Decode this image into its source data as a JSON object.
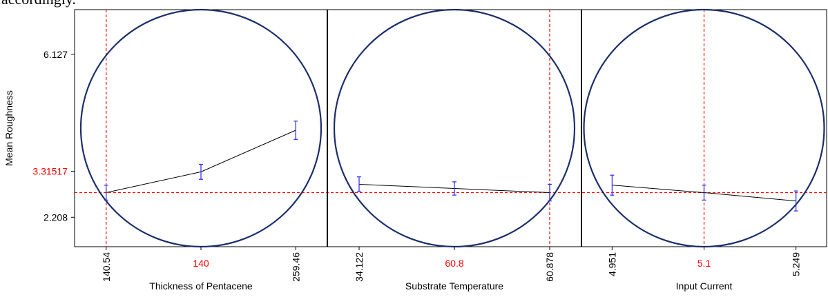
{
  "caption": "accordingly.",
  "chart_data": {
    "type": "line",
    "ylabel": "Mean Roughness",
    "ylim": [
      1.5,
      7.2
    ],
    "y_ticks": [
      "6.127",
      "3.31517",
      "2.208"
    ],
    "y_tick_values": [
      6.127,
      3.31517,
      2.208
    ],
    "y_highlight_label": "3.31517",
    "reference_y": 2.8,
    "highlight_color": "#ff0000",
    "circle_color": "#1a2e6b",
    "errorbar_color": "#3333ff",
    "line_color": "#000000",
    "grid": false,
    "panels": [
      {
        "xlabel": "Thickness of Pentacene",
        "tick_labels": [
          "140.54",
          "140",
          "259.46"
        ],
        "highlight_tick_index": 0,
        "highlight_label_index": 1,
        "points": [
          {
            "y": 2.8,
            "err": 0.18
          },
          {
            "y": 3.3,
            "err": 0.18
          },
          {
            "y": 4.3,
            "err": 0.22
          }
        ]
      },
      {
        "xlabel": "Substrate Temperature",
        "tick_labels": [
          "34.122",
          "60.8",
          "60.878"
        ],
        "highlight_tick_index": 2,
        "highlight_label_index": 1,
        "points": [
          {
            "y": 3.0,
            "err": 0.18
          },
          {
            "y": 2.9,
            "err": 0.16
          },
          {
            "y": 2.8,
            "err": 0.2
          }
        ]
      },
      {
        "xlabel": "Input Current",
        "tick_labels": [
          "4.951",
          "5.1",
          "5.249"
        ],
        "highlight_tick_index": 1,
        "highlight_label_index": 1,
        "points": [
          {
            "y": 2.98,
            "err": 0.24
          },
          {
            "y": 2.8,
            "err": 0.18
          },
          {
            "y": 2.6,
            "err": 0.24
          }
        ]
      }
    ]
  }
}
